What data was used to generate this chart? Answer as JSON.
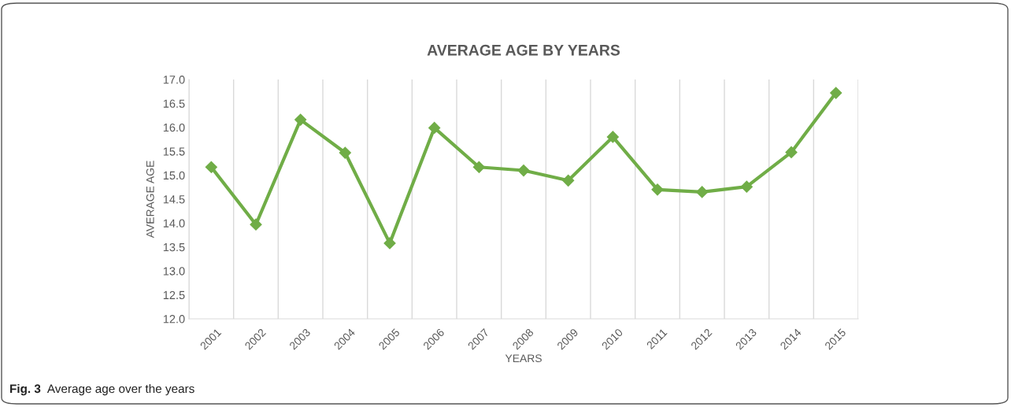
{
  "chart_data": {
    "type": "line",
    "title": "AVERAGE AGE BY YEARS",
    "xlabel": "YEARS",
    "ylabel": "AVERAGE AGE",
    "categories": [
      "2001",
      "2002",
      "2003",
      "2004",
      "2005",
      "2006",
      "2007",
      "2008",
      "2009",
      "2010",
      "2011",
      "2012",
      "2013",
      "2014",
      "2015"
    ],
    "series": [
      {
        "color": "#70ad47",
        "values": [
          15.17,
          13.97,
          16.16,
          15.47,
          13.58,
          15.99,
          15.17,
          15.1,
          14.89,
          15.8,
          14.7,
          14.65,
          14.76,
          15.48,
          16.72
        ]
      }
    ],
    "ylim": [
      12.0,
      17.0
    ],
    "yticks": [
      {
        "value": 12,
        "label": "12.0"
      },
      {
        "value": 12.5,
        "label": "12.5"
      },
      {
        "value": 13,
        "label": "13.0"
      },
      {
        "value": 13.5,
        "label": "13.5"
      },
      {
        "value": 14,
        "label": "14.0"
      },
      {
        "value": 14.5,
        "label": "14.5"
      },
      {
        "value": 15,
        "label": "15.0"
      },
      {
        "value": 15.5,
        "label": "15.5"
      },
      {
        "value": 16,
        "label": "16.0"
      },
      {
        "value": 16.5,
        "label": "16.5"
      },
      {
        "value": 17,
        "label": "17.0"
      }
    ],
    "grid": "x",
    "marker": "diamond",
    "line_style": "solid",
    "legend": false,
    "annotations": [
      "Fig. 3",
      "Average age over the years"
    ]
  }
}
